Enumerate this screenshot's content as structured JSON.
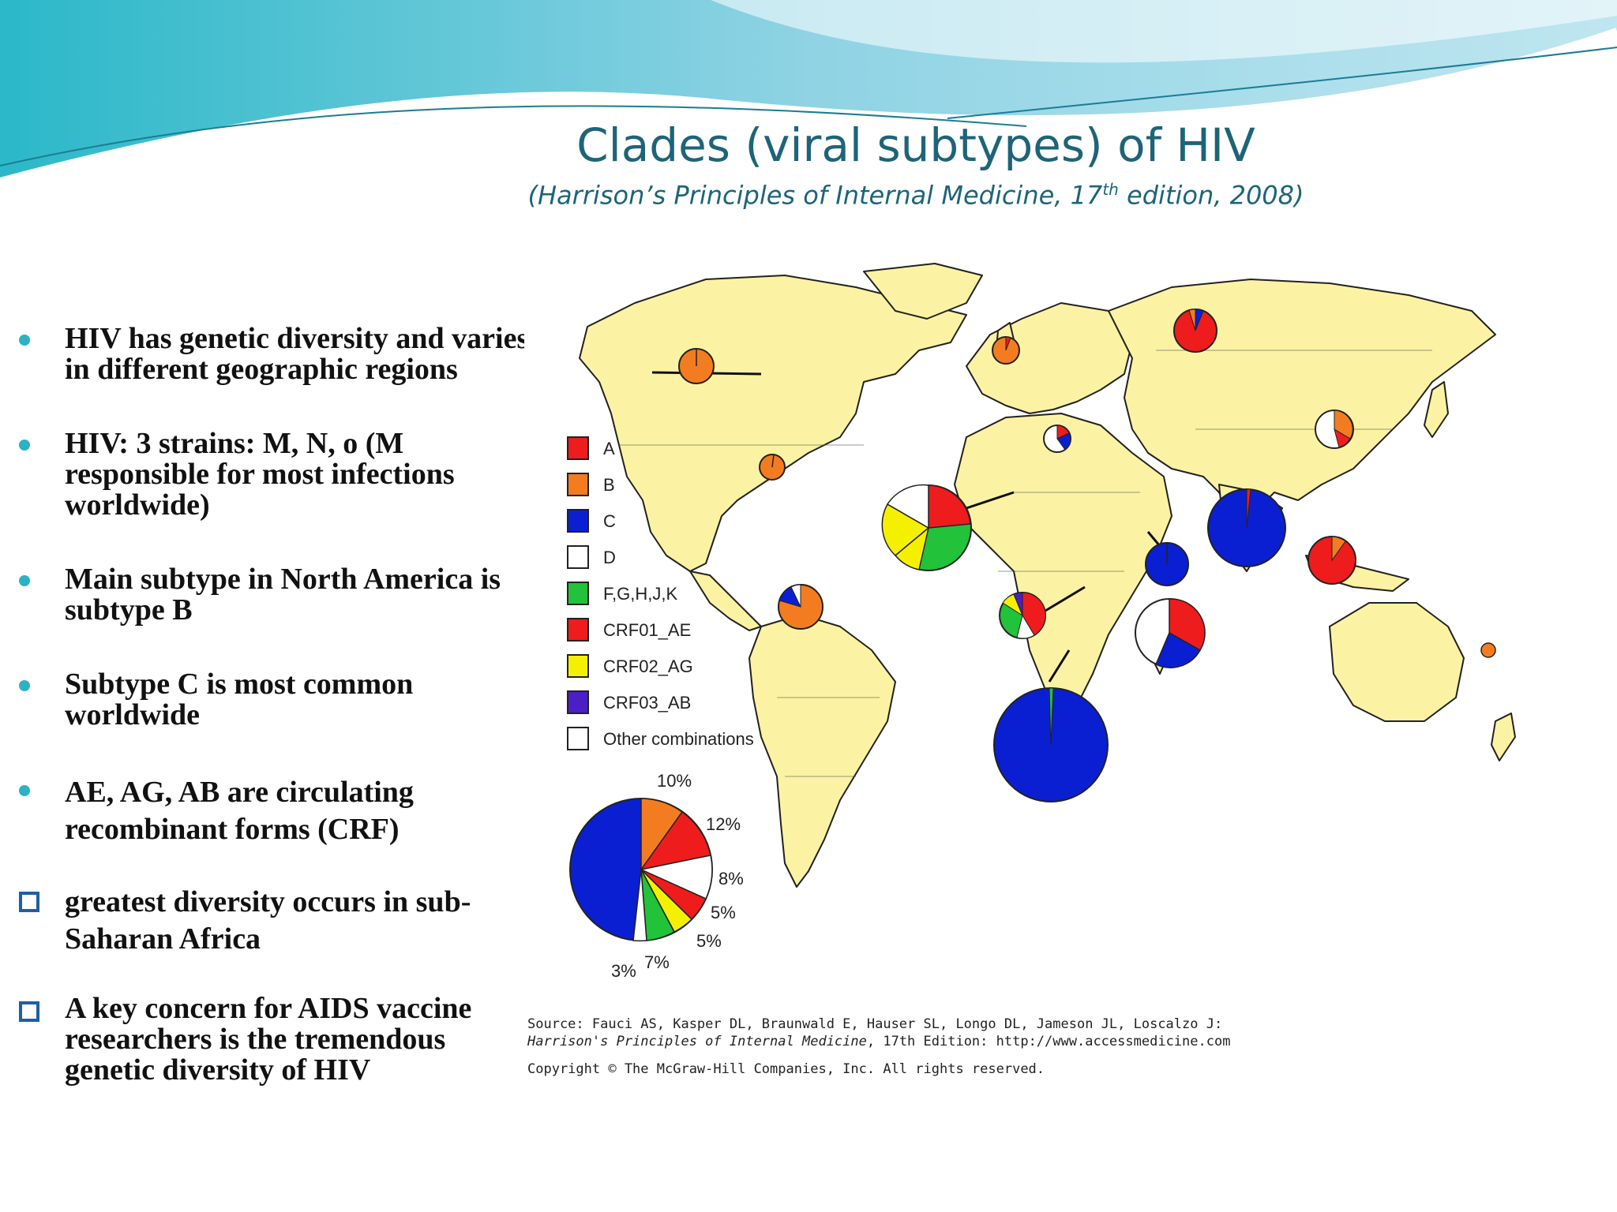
{
  "slide": {
    "title": "Clades (viral subtypes) of HIV",
    "subtitle_pre": "(Harrison’s Principles of Internal Medicine, 17",
    "subtitle_sup": "th",
    "subtitle_post": " edition, 2008)"
  },
  "bullets": [
    {
      "marker": "dot",
      "text": "HIV has genetic diversity and varies in different geographic regions"
    },
    {
      "marker": "dot",
      "text": "HIV: 3 strains: M, N, o (M responsible for most  infections worldwide)"
    },
    {
      "marker": "dot",
      "text": "Main subtype in North America is subtype B"
    },
    {
      "marker": "dot",
      "text": "Subtype C is most common worldwide"
    },
    {
      "marker": "dot",
      "text": "AE, AG, AB are circulating recombinant forms (CRF)"
    },
    {
      "marker": "square",
      "text": "greatest diversity occurs in sub-Saharan Africa"
    },
    {
      "marker": "square",
      "text": "A key concern for AIDS vaccine researchers is the tremendous genetic diversity of HIV"
    }
  ],
  "legend": [
    {
      "label": "A",
      "color": "#ee1c1c"
    },
    {
      "label": "B",
      "color": "#f47c20"
    },
    {
      "label": "C",
      "color": "#0a1fd2"
    },
    {
      "label": "D",
      "color": "#ffffff"
    },
    {
      "label": "F,G,H,J,K",
      "color": "#22c23a"
    },
    {
      "label": "CRF01_AE",
      "color": "#ee1c1c"
    },
    {
      "label": "CRF02_AG",
      "color": "#f5f000"
    },
    {
      "label": "CRF03_AB",
      "color": "#4b1fc8"
    },
    {
      "label": "Other combinations",
      "color": "#ffffff"
    }
  ],
  "global_pie": {
    "labels": [
      "10%",
      "12%",
      "8%",
      "5%",
      "5%",
      "7%",
      "3%"
    ]
  },
  "source": {
    "line1": "Source: Fauci AS, Kasper DL, Braunwald E, Hauser SL, Longo DL, Jameson JL, Loscalzo J:",
    "line2_italic": "Harrison's Principles of Internal Medicine",
    "line2_rest": ", 17th Edition: http://www.accessmedicine.com",
    "copyright": "Copyright © The McGraw-Hill Companies, Inc. All rights reserved."
  },
  "colors": {
    "land": "#fbf3a3",
    "ocean": "#ffffff",
    "title": "#1d6478",
    "bullet_dot": "#2bb2c4",
    "bullet_square": "#1f5fa6"
  }
}
